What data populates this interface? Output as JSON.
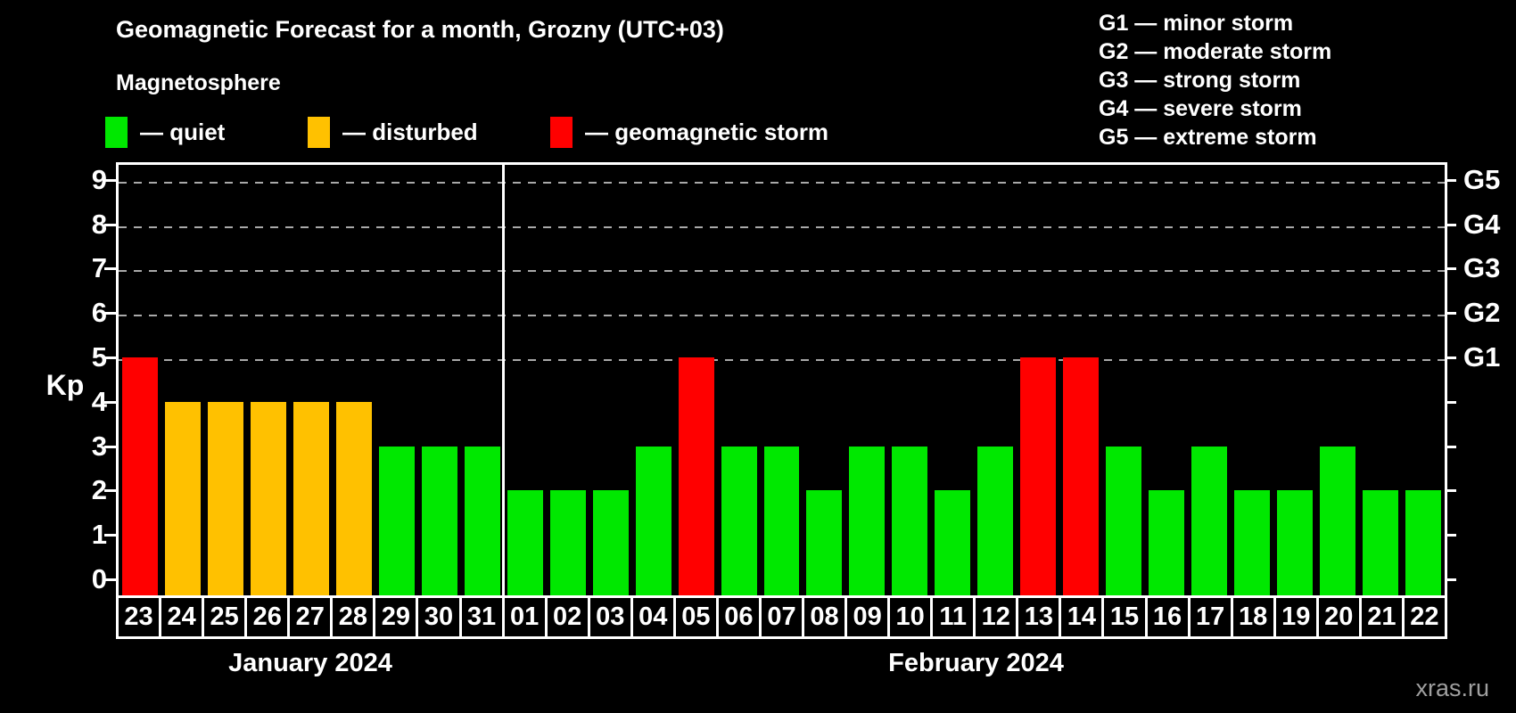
{
  "title": "Geomagnetic Forecast for a month, Grozny (UTC+03)",
  "subtitle": "Magnetosphere",
  "legend": [
    {
      "key": "quiet",
      "label": "— quiet",
      "color": "#00e800"
    },
    {
      "key": "disturbed",
      "label": "— disturbed",
      "color": "#ffc100"
    },
    {
      "key": "storm",
      "label": "— geomagnetic storm",
      "color": "#ff0000"
    }
  ],
  "g_legend": [
    "G1 — minor storm",
    "G2 — moderate storm",
    "G3 — strong storm",
    "G4 — severe storm",
    "G5 — extreme storm"
  ],
  "watermark": "xras.ru",
  "chart_data": {
    "type": "bar",
    "title": "Geomagnetic Forecast for a month, Grozny (UTC+03)",
    "ylabel": "Kp",
    "ylim": [
      0,
      9.4
    ],
    "yticks": [
      0,
      1,
      2,
      3,
      4,
      5,
      6,
      7,
      8,
      9
    ],
    "gridlines_at": [
      5,
      6,
      7,
      8,
      9
    ],
    "grid": "dashed-horizontal",
    "right_axis": [
      {
        "kp": 5,
        "label": "G1"
      },
      {
        "kp": 6,
        "label": "G2"
      },
      {
        "kp": 7,
        "label": "G3"
      },
      {
        "kp": 8,
        "label": "G4"
      },
      {
        "kp": 9,
        "label": "G5"
      }
    ],
    "status_colors": {
      "quiet": "#00e800",
      "disturbed": "#ffc100",
      "storm": "#ff0000"
    },
    "series": [
      {
        "month": "January 2024",
        "points": [
          {
            "day": "23",
            "kp": 5,
            "status": "storm"
          },
          {
            "day": "24",
            "kp": 4,
            "status": "disturbed"
          },
          {
            "day": "25",
            "kp": 4,
            "status": "disturbed"
          },
          {
            "day": "26",
            "kp": 4,
            "status": "disturbed"
          },
          {
            "day": "27",
            "kp": 4,
            "status": "disturbed"
          },
          {
            "day": "28",
            "kp": 4,
            "status": "disturbed"
          },
          {
            "day": "29",
            "kp": 3,
            "status": "quiet"
          },
          {
            "day": "30",
            "kp": 3,
            "status": "quiet"
          },
          {
            "day": "31",
            "kp": 3,
            "status": "quiet"
          }
        ]
      },
      {
        "month": "February 2024",
        "points": [
          {
            "day": "01",
            "kp": 2,
            "status": "quiet"
          },
          {
            "day": "02",
            "kp": 2,
            "status": "quiet"
          },
          {
            "day": "03",
            "kp": 2,
            "status": "quiet"
          },
          {
            "day": "04",
            "kp": 3,
            "status": "quiet"
          },
          {
            "day": "05",
            "kp": 5,
            "status": "storm"
          },
          {
            "day": "06",
            "kp": 3,
            "status": "quiet"
          },
          {
            "day": "07",
            "kp": 3,
            "status": "quiet"
          },
          {
            "day": "08",
            "kp": 2,
            "status": "quiet"
          },
          {
            "day": "09",
            "kp": 3,
            "status": "quiet"
          },
          {
            "day": "10",
            "kp": 3,
            "status": "quiet"
          },
          {
            "day": "11",
            "kp": 2,
            "status": "quiet"
          },
          {
            "day": "12",
            "kp": 3,
            "status": "quiet"
          },
          {
            "day": "13",
            "kp": 5,
            "status": "storm"
          },
          {
            "day": "14",
            "kp": 5,
            "status": "storm"
          },
          {
            "day": "15",
            "kp": 3,
            "status": "quiet"
          },
          {
            "day": "16",
            "kp": 2,
            "status": "quiet"
          },
          {
            "day": "17",
            "kp": 3,
            "status": "quiet"
          },
          {
            "day": "18",
            "kp": 2,
            "status": "quiet"
          },
          {
            "day": "19",
            "kp": 2,
            "status": "quiet"
          },
          {
            "day": "20",
            "kp": 3,
            "status": "quiet"
          },
          {
            "day": "21",
            "kp": 2,
            "status": "quiet"
          },
          {
            "day": "22",
            "kp": 2,
            "status": "quiet"
          }
        ]
      }
    ]
  }
}
